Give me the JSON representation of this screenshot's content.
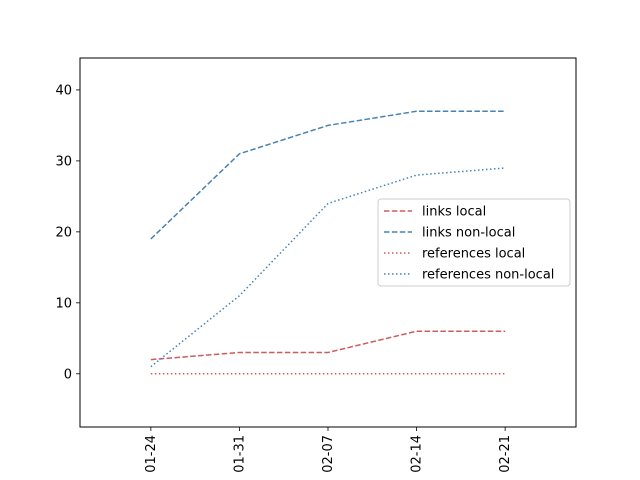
{
  "chart_data": {
    "type": "line",
    "title": "",
    "xlabel": "",
    "ylabel": "",
    "categories": [
      "01-24",
      "01-31",
      "02-07",
      "02-14",
      "02-21"
    ],
    "xlim": [
      -0.8,
      4.8
    ],
    "ylim": [
      -7.5,
      44.5
    ],
    "yticks": [
      0,
      10,
      20,
      30,
      40
    ],
    "grid": false,
    "legend_position": "center-right",
    "series": [
      {
        "name": "links local",
        "color": "#cd5c5c",
        "style": "dashed",
        "values": [
          2,
          3,
          3,
          6,
          6
        ]
      },
      {
        "name": "links non-local",
        "color": "#4682b4",
        "style": "dashed",
        "values": [
          19,
          31,
          35,
          37,
          37
        ]
      },
      {
        "name": "references local",
        "color": "#cd5c5c",
        "style": "dotted",
        "values": [
          0,
          0,
          0,
          0,
          0
        ]
      },
      {
        "name": "references non-local",
        "color": "#4682b4",
        "style": "dotted",
        "values": [
          1,
          11,
          24,
          28,
          29
        ]
      }
    ]
  }
}
